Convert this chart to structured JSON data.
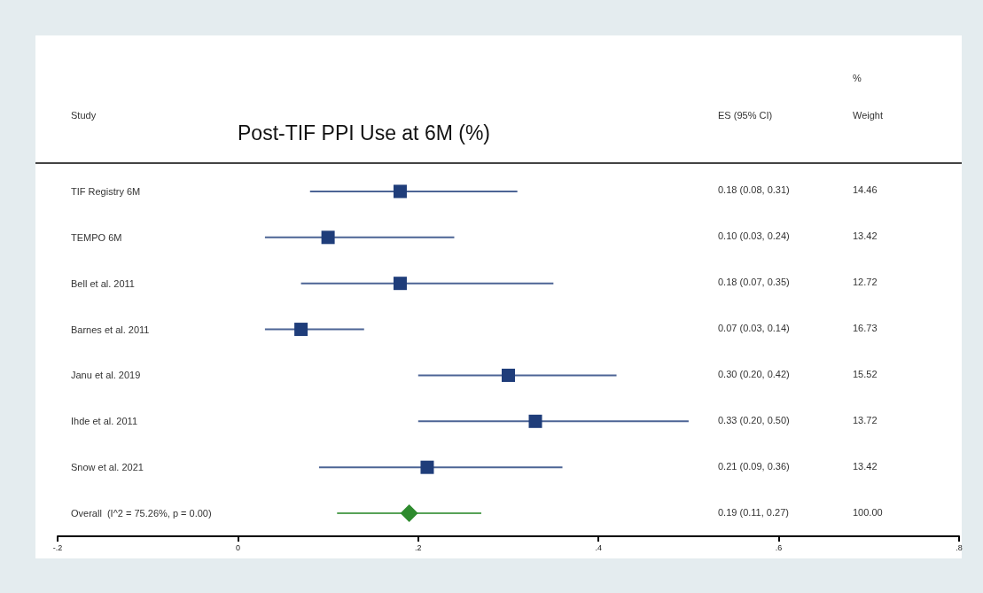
{
  "chart_data": {
    "type": "scatter",
    "orientation": "horizontal",
    "title": "Post-TIF PPI Use at 6M (%)",
    "ylabel": "Study",
    "categories": [
      "TIF Registry 6M",
      "TEMPO 6M",
      "Bell et al. 2011",
      "Barnes et al. 2011",
      "Janu et al. 2019",
      "Ihde et al. 2011",
      "Snow et al. 2021",
      "Overall  (I^2 = 75.26%, p = 0.00)"
    ],
    "xlim": [
      -0.2,
      0.8
    ],
    "xticks": [
      {
        "value": -0.2,
        "label": "-.2"
      },
      0,
      {
        "value": 0.2,
        "label": ".2"
      },
      {
        "value": 0.4,
        "label": ".4"
      },
      {
        "value": 0.6,
        "label": ".6"
      },
      {
        "value": 0.8,
        "label": ".8"
      }
    ],
    "annotations": [
      "ES (95% CI)",
      "%",
      "Weight",
      "14.46",
      "13.42",
      "12.72",
      "16.73",
      "15.52",
      "13.72",
      "13.42",
      "100.00",
      "0.18 (0.08, 0.31)",
      "0.10 (0.03, 0.24)",
      "0.18 (0.07, 0.35)",
      "0.07 (0.03, 0.14)",
      "0.30 (0.20, 0.42)",
      "0.33 (0.20, 0.50)",
      "0.21 (0.09, 0.36)",
      "0.19 (0.11, 0.27)"
    ],
    "series": [
      {
        "color": "#1f3d7a",
        "marker": "square",
        "values": [
          0.18,
          0.1,
          0.18,
          0.07,
          0.3,
          0.33,
          0.21,
          null
        ],
        "errors": [
          [
            0.08,
            0.31
          ],
          [
            0.03,
            0.24
          ],
          [
            0.07,
            0.35
          ],
          [
            0.03,
            0.14
          ],
          [
            0.2,
            0.42
          ],
          [
            0.2,
            0.5
          ],
          [
            0.09,
            0.36
          ],
          null
        ]
      },
      {
        "color": "#2e8b2e",
        "marker": "diamond",
        "values": [
          null,
          null,
          null,
          null,
          null,
          null,
          null,
          0.19
        ],
        "errors": [
          null,
          null,
          null,
          null,
          null,
          null,
          null,
          [
            0.11,
            0.27
          ]
        ]
      }
    ]
  }
}
